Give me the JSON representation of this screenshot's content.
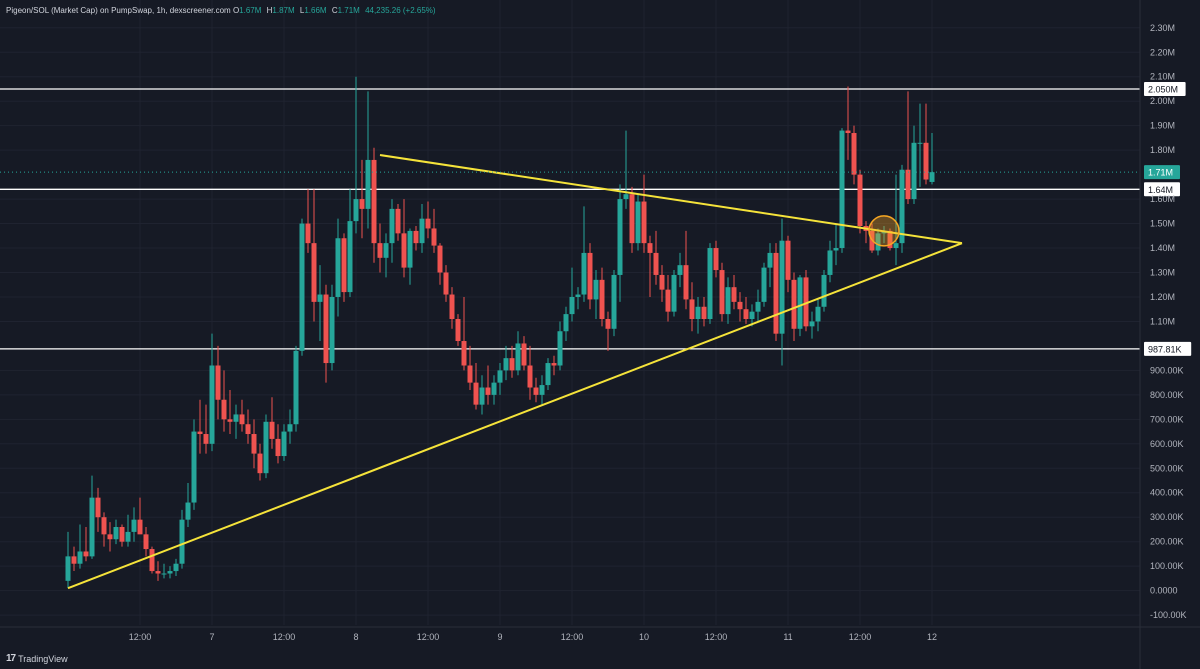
{
  "header": {
    "symbol": "Pigeon/SOL (Market Cap) on PumpSwap, 1h, dexscreener.com",
    "o_label": "O",
    "o_value": "1.67M",
    "h_label": "H",
    "h_value": "1.87M",
    "l_label": "L",
    "l_value": "1.66M",
    "c_label": "C",
    "c_value": "1.71M",
    "change": "44,235.26 (+2.65%)"
  },
  "branding": {
    "logo_mark": "17",
    "logo_text": "TradingView"
  },
  "colors": {
    "background": "#161a25",
    "up": "#26a69a",
    "down": "#ef5350",
    "trendline": "#f5e33a",
    "hline": "#ffffff",
    "last_price": "#26a69a",
    "circle": "#f5a623"
  },
  "chart_data": {
    "type": "candlestick",
    "title": "",
    "xlabel": "",
    "ylabel": "",
    "ylim": [
      -120000,
      2340000
    ],
    "y_ticks": [
      {
        "value": 2300000,
        "label": "2.30M"
      },
      {
        "value": 2200000,
        "label": "2.20M"
      },
      {
        "value": 2100000,
        "label": "2.10M"
      },
      {
        "value": 2000000,
        "label": "2.00M"
      },
      {
        "value": 1900000,
        "label": "1.90M"
      },
      {
        "value": 1800000,
        "label": "1.80M"
      },
      {
        "value": 1600000,
        "label": "1.60M"
      },
      {
        "value": 1500000,
        "label": "1.50M"
      },
      {
        "value": 1400000,
        "label": "1.40M"
      },
      {
        "value": 1300000,
        "label": "1.30M"
      },
      {
        "value": 1200000,
        "label": "1.20M"
      },
      {
        "value": 1100000,
        "label": "1.10M"
      },
      {
        "value": 900000,
        "label": "900.00K"
      },
      {
        "value": 800000,
        "label": "800.00K"
      },
      {
        "value": 700000,
        "label": "700.00K"
      },
      {
        "value": 600000,
        "label": "600.00K"
      },
      {
        "value": 500000,
        "label": "500.00K"
      },
      {
        "value": 400000,
        "label": "400.00K"
      },
      {
        "value": 300000,
        "label": "300.00K"
      },
      {
        "value": 200000,
        "label": "200.00K"
      },
      {
        "value": 100000,
        "label": "100.00K"
      },
      {
        "value": 0,
        "label": "0.0000"
      },
      {
        "value": -100000,
        "label": "-100.00K"
      }
    ],
    "x_ticks": [
      {
        "x": 12,
        "label": "12:00"
      },
      {
        "x": 24,
        "label": "7"
      },
      {
        "x": 36,
        "label": "12:00"
      },
      {
        "x": 48,
        "label": "8"
      },
      {
        "x": 60,
        "label": "12:00"
      },
      {
        "x": 72,
        "label": "9"
      },
      {
        "x": 84,
        "label": "12:00"
      },
      {
        "x": 96,
        "label": "10"
      },
      {
        "x": 108,
        "label": "12:00"
      },
      {
        "x": 120,
        "label": "11"
      },
      {
        "x": 132,
        "label": "12:00"
      },
      {
        "x": 144,
        "label": "12"
      }
    ],
    "horizontal_levels": [
      {
        "value": 2050000,
        "label": "2.050M"
      },
      {
        "value": 1640000,
        "label": "1.64M"
      },
      {
        "value": 987810,
        "label": "987.81K"
      }
    ],
    "last_price": {
      "value": 1710000,
      "label": "1.71M"
    },
    "trendlines": [
      {
        "name": "upper",
        "from": [
          52,
          1780000
        ],
        "to": [
          149,
          1420000
        ]
      },
      {
        "name": "lower",
        "from": [
          0,
          10000
        ],
        "to": [
          149,
          1420000
        ]
      }
    ],
    "highlight_circle": {
      "x": 136,
      "y": 1470000
    },
    "candles": [
      {
        "o": 40000,
        "h": 240000,
        "l": 10000,
        "c": 140000
      },
      {
        "o": 140000,
        "h": 180000,
        "l": 80000,
        "c": 110000
      },
      {
        "o": 110000,
        "h": 270000,
        "l": 90000,
        "c": 160000
      },
      {
        "o": 160000,
        "h": 260000,
        "l": 120000,
        "c": 140000
      },
      {
        "o": 140000,
        "h": 470000,
        "l": 130000,
        "c": 380000
      },
      {
        "o": 380000,
        "h": 420000,
        "l": 240000,
        "c": 300000
      },
      {
        "o": 300000,
        "h": 320000,
        "l": 180000,
        "c": 230000
      },
      {
        "o": 230000,
        "h": 280000,
        "l": 160000,
        "c": 210000
      },
      {
        "o": 210000,
        "h": 290000,
        "l": 190000,
        "c": 260000
      },
      {
        "o": 260000,
        "h": 270000,
        "l": 180000,
        "c": 200000
      },
      {
        "o": 200000,
        "h": 310000,
        "l": 180000,
        "c": 240000
      },
      {
        "o": 240000,
        "h": 340000,
        "l": 200000,
        "c": 290000
      },
      {
        "o": 290000,
        "h": 380000,
        "l": 240000,
        "c": 230000
      },
      {
        "o": 230000,
        "h": 260000,
        "l": 140000,
        "c": 170000
      },
      {
        "o": 170000,
        "h": 180000,
        "l": 70000,
        "c": 80000
      },
      {
        "o": 80000,
        "h": 120000,
        "l": 40000,
        "c": 70000
      },
      {
        "o": 70000,
        "h": 110000,
        "l": 50000,
        "c": 70000
      },
      {
        "o": 70000,
        "h": 100000,
        "l": 50000,
        "c": 80000
      },
      {
        "o": 80000,
        "h": 130000,
        "l": 60000,
        "c": 110000
      },
      {
        "o": 110000,
        "h": 330000,
        "l": 90000,
        "c": 290000
      },
      {
        "o": 290000,
        "h": 440000,
        "l": 260000,
        "c": 360000
      },
      {
        "o": 360000,
        "h": 700000,
        "l": 330000,
        "c": 650000
      },
      {
        "o": 650000,
        "h": 780000,
        "l": 560000,
        "c": 640000
      },
      {
        "o": 640000,
        "h": 760000,
        "l": 560000,
        "c": 600000
      },
      {
        "o": 600000,
        "h": 1050000,
        "l": 570000,
        "c": 920000
      },
      {
        "o": 920000,
        "h": 1000000,
        "l": 700000,
        "c": 780000
      },
      {
        "o": 780000,
        "h": 900000,
        "l": 650000,
        "c": 700000
      },
      {
        "o": 700000,
        "h": 820000,
        "l": 640000,
        "c": 690000
      },
      {
        "o": 690000,
        "h": 760000,
        "l": 620000,
        "c": 720000
      },
      {
        "o": 720000,
        "h": 780000,
        "l": 650000,
        "c": 680000
      },
      {
        "o": 680000,
        "h": 740000,
        "l": 600000,
        "c": 640000
      },
      {
        "o": 640000,
        "h": 700000,
        "l": 500000,
        "c": 560000
      },
      {
        "o": 560000,
        "h": 600000,
        "l": 450000,
        "c": 480000
      },
      {
        "o": 480000,
        "h": 720000,
        "l": 460000,
        "c": 690000
      },
      {
        "o": 690000,
        "h": 790000,
        "l": 580000,
        "c": 620000
      },
      {
        "o": 620000,
        "h": 680000,
        "l": 520000,
        "c": 550000
      },
      {
        "o": 550000,
        "h": 680000,
        "l": 530000,
        "c": 650000
      },
      {
        "o": 650000,
        "h": 740000,
        "l": 600000,
        "c": 680000
      },
      {
        "o": 680000,
        "h": 1000000,
        "l": 650000,
        "c": 980000
      },
      {
        "o": 980000,
        "h": 1520000,
        "l": 960000,
        "c": 1500000
      },
      {
        "o": 1500000,
        "h": 1640000,
        "l": 1380000,
        "c": 1420000
      },
      {
        "o": 1420000,
        "h": 1640000,
        "l": 1100000,
        "c": 1180000
      },
      {
        "o": 1180000,
        "h": 1330000,
        "l": 1020000,
        "c": 1210000
      },
      {
        "o": 1210000,
        "h": 1250000,
        "l": 850000,
        "c": 930000
      },
      {
        "o": 930000,
        "h": 1250000,
        "l": 900000,
        "c": 1200000
      },
      {
        "o": 1200000,
        "h": 1520000,
        "l": 1120000,
        "c": 1440000
      },
      {
        "o": 1440000,
        "h": 1460000,
        "l": 1180000,
        "c": 1220000
      },
      {
        "o": 1220000,
        "h": 1640000,
        "l": 1200000,
        "c": 1510000
      },
      {
        "o": 1510000,
        "h": 2100000,
        "l": 1460000,
        "c": 1600000
      },
      {
        "o": 1600000,
        "h": 1760000,
        "l": 1440000,
        "c": 1560000
      },
      {
        "o": 1560000,
        "h": 2040000,
        "l": 1480000,
        "c": 1760000
      },
      {
        "o": 1760000,
        "h": 1810000,
        "l": 1340000,
        "c": 1420000
      },
      {
        "o": 1420000,
        "h": 1500000,
        "l": 1300000,
        "c": 1360000
      },
      {
        "o": 1360000,
        "h": 1460000,
        "l": 1280000,
        "c": 1420000
      },
      {
        "o": 1420000,
        "h": 1600000,
        "l": 1340000,
        "c": 1560000
      },
      {
        "o": 1560000,
        "h": 1580000,
        "l": 1430000,
        "c": 1460000
      },
      {
        "o": 1460000,
        "h": 1600000,
        "l": 1280000,
        "c": 1320000
      },
      {
        "o": 1320000,
        "h": 1480000,
        "l": 1250000,
        "c": 1470000
      },
      {
        "o": 1470000,
        "h": 1490000,
        "l": 1390000,
        "c": 1420000
      },
      {
        "o": 1420000,
        "h": 1580000,
        "l": 1380000,
        "c": 1520000
      },
      {
        "o": 1520000,
        "h": 1590000,
        "l": 1440000,
        "c": 1480000
      },
      {
        "o": 1480000,
        "h": 1560000,
        "l": 1380000,
        "c": 1410000
      },
      {
        "o": 1410000,
        "h": 1420000,
        "l": 1250000,
        "c": 1300000
      },
      {
        "o": 1300000,
        "h": 1330000,
        "l": 1180000,
        "c": 1210000
      },
      {
        "o": 1210000,
        "h": 1240000,
        "l": 1070000,
        "c": 1110000
      },
      {
        "o": 1110000,
        "h": 1130000,
        "l": 1000000,
        "c": 1020000
      },
      {
        "o": 1020000,
        "h": 1200000,
        "l": 900000,
        "c": 920000
      },
      {
        "o": 920000,
        "h": 1000000,
        "l": 820000,
        "c": 850000
      },
      {
        "o": 850000,
        "h": 930000,
        "l": 740000,
        "c": 760000
      },
      {
        "o": 760000,
        "h": 880000,
        "l": 720000,
        "c": 830000
      },
      {
        "o": 830000,
        "h": 920000,
        "l": 760000,
        "c": 800000
      },
      {
        "o": 800000,
        "h": 880000,
        "l": 760000,
        "c": 850000
      },
      {
        "o": 850000,
        "h": 930000,
        "l": 800000,
        "c": 900000
      },
      {
        "o": 900000,
        "h": 1000000,
        "l": 860000,
        "c": 950000
      },
      {
        "o": 950000,
        "h": 1000000,
        "l": 870000,
        "c": 900000
      },
      {
        "o": 900000,
        "h": 1060000,
        "l": 880000,
        "c": 1010000
      },
      {
        "o": 1010000,
        "h": 1040000,
        "l": 900000,
        "c": 920000
      },
      {
        "o": 920000,
        "h": 1000000,
        "l": 780000,
        "c": 830000
      },
      {
        "o": 830000,
        "h": 870000,
        "l": 770000,
        "c": 800000
      },
      {
        "o": 800000,
        "h": 880000,
        "l": 760000,
        "c": 840000
      },
      {
        "o": 840000,
        "h": 950000,
        "l": 820000,
        "c": 930000
      },
      {
        "o": 930000,
        "h": 960000,
        "l": 880000,
        "c": 920000
      },
      {
        "o": 920000,
        "h": 1100000,
        "l": 900000,
        "c": 1060000
      },
      {
        "o": 1060000,
        "h": 1160000,
        "l": 1020000,
        "c": 1130000
      },
      {
        "o": 1130000,
        "h": 1320000,
        "l": 1100000,
        "c": 1200000
      },
      {
        "o": 1200000,
        "h": 1240000,
        "l": 1150000,
        "c": 1210000
      },
      {
        "o": 1210000,
        "h": 1570000,
        "l": 1180000,
        "c": 1380000
      },
      {
        "o": 1380000,
        "h": 1420000,
        "l": 1150000,
        "c": 1190000
      },
      {
        "o": 1190000,
        "h": 1310000,
        "l": 1110000,
        "c": 1270000
      },
      {
        "o": 1270000,
        "h": 1320000,
        "l": 1080000,
        "c": 1110000
      },
      {
        "o": 1110000,
        "h": 1140000,
        "l": 980000,
        "c": 1070000
      },
      {
        "o": 1070000,
        "h": 1310000,
        "l": 1040000,
        "c": 1290000
      },
      {
        "o": 1290000,
        "h": 1660000,
        "l": 1180000,
        "c": 1600000
      },
      {
        "o": 1600000,
        "h": 1880000,
        "l": 1560000,
        "c": 1620000
      },
      {
        "o": 1620000,
        "h": 1650000,
        "l": 1380000,
        "c": 1420000
      },
      {
        "o": 1420000,
        "h": 1620000,
        "l": 1390000,
        "c": 1590000
      },
      {
        "o": 1590000,
        "h": 1700000,
        "l": 1380000,
        "c": 1420000
      },
      {
        "o": 1420000,
        "h": 1450000,
        "l": 1200000,
        "c": 1380000
      },
      {
        "o": 1380000,
        "h": 1470000,
        "l": 1250000,
        "c": 1290000
      },
      {
        "o": 1290000,
        "h": 1330000,
        "l": 1180000,
        "c": 1230000
      },
      {
        "o": 1230000,
        "h": 1290000,
        "l": 1100000,
        "c": 1140000
      },
      {
        "o": 1140000,
        "h": 1310000,
        "l": 1120000,
        "c": 1290000
      },
      {
        "o": 1290000,
        "h": 1380000,
        "l": 1240000,
        "c": 1330000
      },
      {
        "o": 1330000,
        "h": 1470000,
        "l": 1150000,
        "c": 1190000
      },
      {
        "o": 1190000,
        "h": 1260000,
        "l": 1060000,
        "c": 1110000
      },
      {
        "o": 1110000,
        "h": 1200000,
        "l": 1050000,
        "c": 1160000
      },
      {
        "o": 1160000,
        "h": 1200000,
        "l": 1080000,
        "c": 1110000
      },
      {
        "o": 1110000,
        "h": 1420000,
        "l": 1090000,
        "c": 1400000
      },
      {
        "o": 1400000,
        "h": 1430000,
        "l": 1280000,
        "c": 1310000
      },
      {
        "o": 1310000,
        "h": 1340000,
        "l": 1100000,
        "c": 1130000
      },
      {
        "o": 1130000,
        "h": 1280000,
        "l": 1090000,
        "c": 1240000
      },
      {
        "o": 1240000,
        "h": 1290000,
        "l": 1150000,
        "c": 1180000
      },
      {
        "o": 1180000,
        "h": 1220000,
        "l": 1100000,
        "c": 1150000
      },
      {
        "o": 1150000,
        "h": 1200000,
        "l": 1090000,
        "c": 1110000
      },
      {
        "o": 1110000,
        "h": 1170000,
        "l": 1080000,
        "c": 1140000
      },
      {
        "o": 1140000,
        "h": 1230000,
        "l": 1100000,
        "c": 1180000
      },
      {
        "o": 1180000,
        "h": 1340000,
        "l": 1160000,
        "c": 1320000
      },
      {
        "o": 1320000,
        "h": 1420000,
        "l": 1240000,
        "c": 1380000
      },
      {
        "o": 1380000,
        "h": 1420000,
        "l": 1020000,
        "c": 1050000
      },
      {
        "o": 1050000,
        "h": 1520000,
        "l": 920000,
        "c": 1430000
      },
      {
        "o": 1430000,
        "h": 1450000,
        "l": 1220000,
        "c": 1270000
      },
      {
        "o": 1270000,
        "h": 1300000,
        "l": 1020000,
        "c": 1070000
      },
      {
        "o": 1070000,
        "h": 1290000,
        "l": 1040000,
        "c": 1280000
      },
      {
        "o": 1280000,
        "h": 1310000,
        "l": 1060000,
        "c": 1080000
      },
      {
        "o": 1080000,
        "h": 1140000,
        "l": 1030000,
        "c": 1100000
      },
      {
        "o": 1100000,
        "h": 1190000,
        "l": 1060000,
        "c": 1160000
      },
      {
        "o": 1160000,
        "h": 1310000,
        "l": 1140000,
        "c": 1290000
      },
      {
        "o": 1290000,
        "h": 1430000,
        "l": 1260000,
        "c": 1390000
      },
      {
        "o": 1390000,
        "h": 1500000,
        "l": 1330000,
        "c": 1400000
      },
      {
        "o": 1400000,
        "h": 1890000,
        "l": 1380000,
        "c": 1880000
      },
      {
        "o": 1880000,
        "h": 2060000,
        "l": 1760000,
        "c": 1870000
      },
      {
        "o": 1870000,
        "h": 1900000,
        "l": 1660000,
        "c": 1700000
      },
      {
        "o": 1700000,
        "h": 1720000,
        "l": 1460000,
        "c": 1490000
      },
      {
        "o": 1490000,
        "h": 1510000,
        "l": 1420000,
        "c": 1470000
      },
      {
        "o": 1470000,
        "h": 1500000,
        "l": 1380000,
        "c": 1390000
      },
      {
        "o": 1390000,
        "h": 1480000,
        "l": 1370000,
        "c": 1460000
      },
      {
        "o": 1460000,
        "h": 1490000,
        "l": 1420000,
        "c": 1470000
      },
      {
        "o": 1470000,
        "h": 1480000,
        "l": 1390000,
        "c": 1400000
      },
      {
        "o": 1400000,
        "h": 1700000,
        "l": 1330000,
        "c": 1420000
      },
      {
        "o": 1420000,
        "h": 1740000,
        "l": 1380000,
        "c": 1720000
      },
      {
        "o": 1720000,
        "h": 2040000,
        "l": 1580000,
        "c": 1600000
      },
      {
        "o": 1600000,
        "h": 1900000,
        "l": 1580000,
        "c": 1830000
      },
      {
        "o": 1830000,
        "h": 1990000,
        "l": 1650000,
        "c": 1830000
      },
      {
        "o": 1830000,
        "h": 1990000,
        "l": 1660000,
        "c": 1680000
      },
      {
        "o": 1670000,
        "h": 1870000,
        "l": 1660000,
        "c": 1710000
      }
    ]
  }
}
